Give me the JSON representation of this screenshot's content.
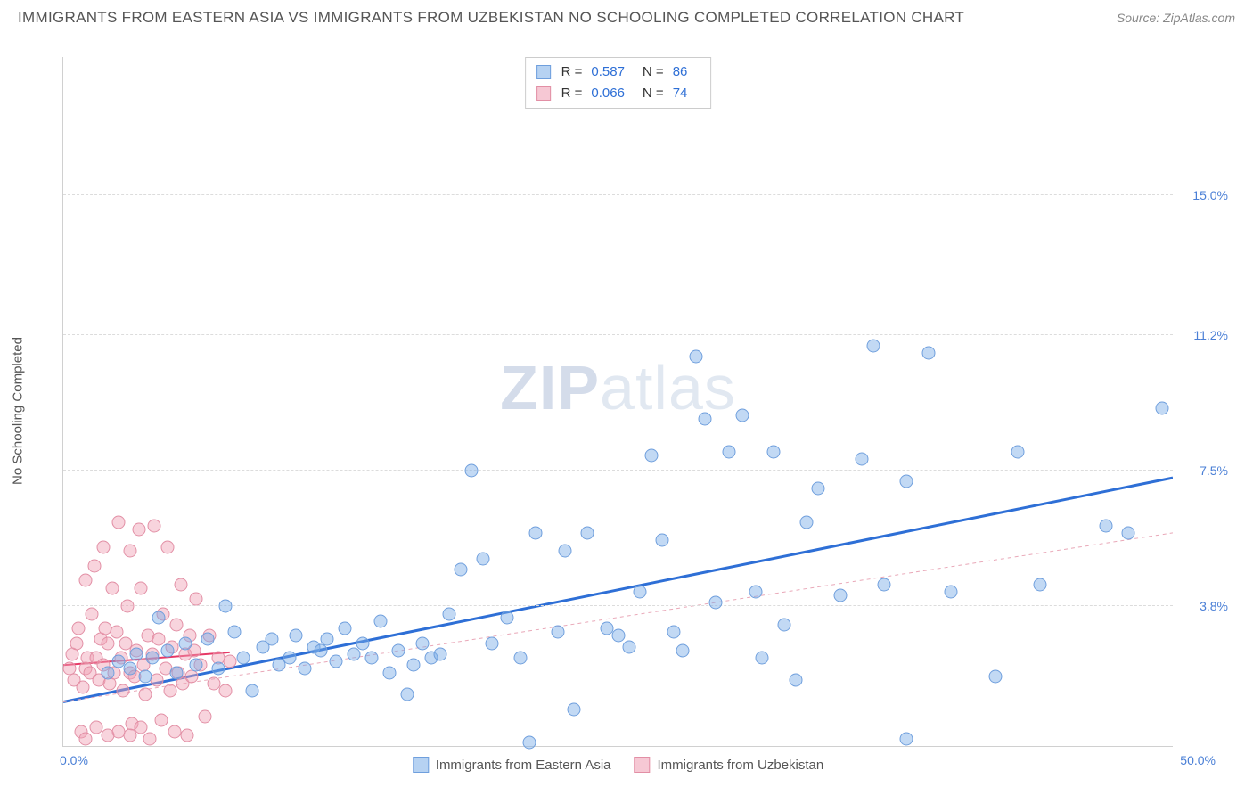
{
  "title": "IMMIGRANTS FROM EASTERN ASIA VS IMMIGRANTS FROM UZBEKISTAN NO SCHOOLING COMPLETED CORRELATION CHART",
  "source": "Source: ZipAtlas.com",
  "watermark_a": "ZIP",
  "watermark_b": "atlas",
  "y_axis_label": "No Schooling Completed",
  "x_min_label": "0.0%",
  "x_max_label": "50.0%",
  "y_ticks": [
    {
      "pct": 20.25,
      "label": "3.8%"
    },
    {
      "pct": 40.0,
      "label": "7.5%"
    },
    {
      "pct": 59.7,
      "label": "11.2%"
    },
    {
      "pct": 80.0,
      "label": "15.0%"
    }
  ],
  "x_range": [
    0,
    50
  ],
  "y_range": [
    0,
    18.75
  ],
  "series_a": {
    "name": "Immigrants from Eastern Asia",
    "color_fill": "rgba(120,170,230,0.45)",
    "color_stroke": "#6f9fdd",
    "r_label": "R  =",
    "r_value": "0.587",
    "n_label": "N  =",
    "n_value": "86",
    "trend": {
      "x1": 0,
      "y1": 1.2,
      "x2": 50,
      "y2": 7.3,
      "dash": true,
      "dash_x2": 50,
      "dash_y2": 5.8
    },
    "trend_color": "#2e6fd6",
    "trend_width": 3,
    "points": [
      [
        2.0,
        2.0
      ],
      [
        2.5,
        2.3
      ],
      [
        3.0,
        2.1
      ],
      [
        3.3,
        2.5
      ],
      [
        3.7,
        1.9
      ],
      [
        4.0,
        2.4
      ],
      [
        4.3,
        3.5
      ],
      [
        4.7,
        2.6
      ],
      [
        5.1,
        2.0
      ],
      [
        5.5,
        2.8
      ],
      [
        6.0,
        2.2
      ],
      [
        6.5,
        2.9
      ],
      [
        7.0,
        2.1
      ],
      [
        7.3,
        3.8
      ],
      [
        7.7,
        3.1
      ],
      [
        8.1,
        2.4
      ],
      [
        8.5,
        1.5
      ],
      [
        9.0,
        2.7
      ],
      [
        9.4,
        2.9
      ],
      [
        9.7,
        2.2
      ],
      [
        10.2,
        2.4
      ],
      [
        10.5,
        3.0
      ],
      [
        10.9,
        2.1
      ],
      [
        11.3,
        2.7
      ],
      [
        11.6,
        2.6
      ],
      [
        11.9,
        2.9
      ],
      [
        12.3,
        2.3
      ],
      [
        12.7,
        3.2
      ],
      [
        13.1,
        2.5
      ],
      [
        13.5,
        2.8
      ],
      [
        13.9,
        2.4
      ],
      [
        14.3,
        3.4
      ],
      [
        14.7,
        2.0
      ],
      [
        15.1,
        2.6
      ],
      [
        15.5,
        1.4
      ],
      [
        15.8,
        2.2
      ],
      [
        16.2,
        2.8
      ],
      [
        16.6,
        2.4
      ],
      [
        17.0,
        2.5
      ],
      [
        17.4,
        3.6
      ],
      [
        17.9,
        4.8
      ],
      [
        18.4,
        7.5
      ],
      [
        18.9,
        5.1
      ],
      [
        19.3,
        2.8
      ],
      [
        20.0,
        3.5
      ],
      [
        20.6,
        2.4
      ],
      [
        21.0,
        0.1
      ],
      [
        21.3,
        5.8
      ],
      [
        22.3,
        3.1
      ],
      [
        22.6,
        5.3
      ],
      [
        23.0,
        1.0
      ],
      [
        23.6,
        5.8
      ],
      [
        24.5,
        3.2
      ],
      [
        25.0,
        3.0
      ],
      [
        25.5,
        2.7
      ],
      [
        26.0,
        4.2
      ],
      [
        26.5,
        7.9
      ],
      [
        27.0,
        5.6
      ],
      [
        27.5,
        3.1
      ],
      [
        27.9,
        2.6
      ],
      [
        28.5,
        10.6
      ],
      [
        28.9,
        8.9
      ],
      [
        29.4,
        3.9
      ],
      [
        30.0,
        8.0
      ],
      [
        30.6,
        9.0
      ],
      [
        31.2,
        4.2
      ],
      [
        31.5,
        2.4
      ],
      [
        32.0,
        8.0
      ],
      [
        32.5,
        3.3
      ],
      [
        33.0,
        1.8
      ],
      [
        33.5,
        6.1
      ],
      [
        34.0,
        7.0
      ],
      [
        35.0,
        4.1
      ],
      [
        36.0,
        7.8
      ],
      [
        36.5,
        10.9
      ],
      [
        37.0,
        4.4
      ],
      [
        38.0,
        0.2
      ],
      [
        38.0,
        7.2
      ],
      [
        39.0,
        10.7
      ],
      [
        40.0,
        4.2
      ],
      [
        42.0,
        1.9
      ],
      [
        43.0,
        8.0
      ],
      [
        44.0,
        4.4
      ],
      [
        47.0,
        6.0
      ],
      [
        48.0,
        5.8
      ],
      [
        49.5,
        9.2
      ]
    ]
  },
  "series_b": {
    "name": "Immigrants from Uzbekistan",
    "color_fill": "rgba(240,160,180,0.45)",
    "color_stroke": "#e28fa5",
    "r_label": "R  =",
    "r_value": "0.066",
    "n_label": "N  =",
    "n_value": "74",
    "trend": {
      "x1": 0,
      "y1": 2.2,
      "x2": 7.5,
      "y2": 2.55
    },
    "trend_color": "#e63966",
    "trend_width": 2,
    "points": [
      [
        0.3,
        2.1
      ],
      [
        0.4,
        2.5
      ],
      [
        0.5,
        1.8
      ],
      [
        0.6,
        2.8
      ],
      [
        0.7,
        3.2
      ],
      [
        0.8,
        0.4
      ],
      [
        0.9,
        1.6
      ],
      [
        1.0,
        2.1
      ],
      [
        1.0,
        4.5
      ],
      [
        1.1,
        2.4
      ],
      [
        1.2,
        2.0
      ],
      [
        1.3,
        3.6
      ],
      [
        1.4,
        4.9
      ],
      [
        1.5,
        0.5
      ],
      [
        1.5,
        2.4
      ],
      [
        1.6,
        1.8
      ],
      [
        1.7,
        2.9
      ],
      [
        1.8,
        5.4
      ],
      [
        1.8,
        2.2
      ],
      [
        1.9,
        3.2
      ],
      [
        2.0,
        0.3
      ],
      [
        2.0,
        2.8
      ],
      [
        2.1,
        1.7
      ],
      [
        2.2,
        4.3
      ],
      [
        2.3,
        2.0
      ],
      [
        2.4,
        3.1
      ],
      [
        2.5,
        6.1
      ],
      [
        2.5,
        0.4
      ],
      [
        2.6,
        2.4
      ],
      [
        2.7,
        1.5
      ],
      [
        2.8,
        2.8
      ],
      [
        2.9,
        3.8
      ],
      [
        3.0,
        2.0
      ],
      [
        3.0,
        5.3
      ],
      [
        3.1,
        0.6
      ],
      [
        3.2,
        1.9
      ],
      [
        3.3,
        2.6
      ],
      [
        3.4,
        5.9
      ],
      [
        3.5,
        4.3
      ],
      [
        3.5,
        0.5
      ],
      [
        3.6,
        2.2
      ],
      [
        3.7,
        1.4
      ],
      [
        3.8,
        3.0
      ],
      [
        3.9,
        0.2
      ],
      [
        4.0,
        2.5
      ],
      [
        4.1,
        6.0
      ],
      [
        4.2,
        1.8
      ],
      [
        4.3,
        2.9
      ],
      [
        4.4,
        0.7
      ],
      [
        4.5,
        3.6
      ],
      [
        4.6,
        2.1
      ],
      [
        4.7,
        5.4
      ],
      [
        4.8,
        1.5
      ],
      [
        4.9,
        2.7
      ],
      [
        5.0,
        0.4
      ],
      [
        5.1,
        3.3
      ],
      [
        5.2,
        2.0
      ],
      [
        5.3,
        4.4
      ],
      [
        5.4,
        1.7
      ],
      [
        5.5,
        2.5
      ],
      [
        5.6,
        0.3
      ],
      [
        5.7,
        3.0
      ],
      [
        5.8,
        1.9
      ],
      [
        5.9,
        2.6
      ],
      [
        6.0,
        4.0
      ],
      [
        6.2,
        2.2
      ],
      [
        6.4,
        0.8
      ],
      [
        6.6,
        3.0
      ],
      [
        6.8,
        1.7
      ],
      [
        7.0,
        2.4
      ],
      [
        7.3,
        1.5
      ],
      [
        7.5,
        2.3
      ],
      [
        1.0,
        0.2
      ],
      [
        3.0,
        0.3
      ]
    ]
  },
  "legend_swatch_a": {
    "fill": "#b6d2f2",
    "stroke": "#6f9fdd"
  },
  "legend_swatch_b": {
    "fill": "#f6c8d4",
    "stroke": "#e28fa5"
  }
}
